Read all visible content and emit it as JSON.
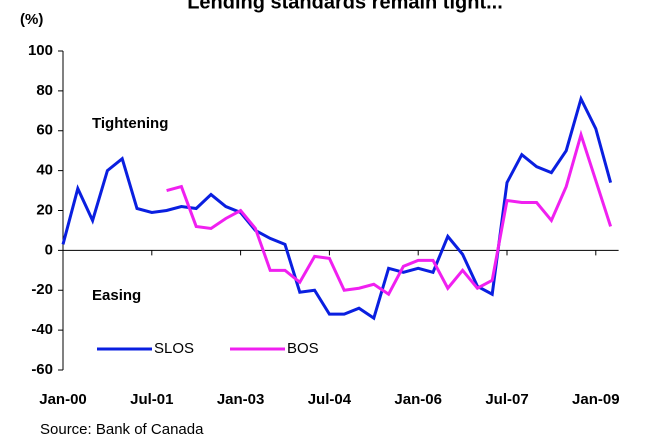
{
  "chart_data": {
    "type": "line",
    "title": "Lending standards remain tight...",
    "unit_label": "(%)",
    "annotations": [
      "Tightening",
      "Easing"
    ],
    "source": "Source: Bank of Canada",
    "categories": [
      "Jan-00",
      null,
      null,
      null,
      null,
      null,
      "Jul-01",
      null,
      null,
      null,
      null,
      null,
      "Jan-03",
      null,
      null,
      null,
      null,
      null,
      "Jul-04",
      null,
      null,
      null,
      null,
      null,
      "Jan-06",
      null,
      null,
      null,
      null,
      null,
      "Jul-07",
      null,
      null,
      null,
      null,
      null,
      "Jan-09",
      null
    ],
    "series": [
      {
        "name": "SLOS",
        "color": "#0a1fe0",
        "values": [
          3,
          31,
          15,
          40,
          46,
          21,
          19,
          20,
          22,
          21,
          28,
          22,
          19,
          10,
          6,
          3,
          -21,
          -20,
          -32,
          -32,
          -29,
          -34,
          -9,
          -11,
          -9,
          -11,
          7,
          -2,
          -18,
          -22,
          34,
          48,
          42,
          39,
          50,
          76,
          61,
          34
        ]
      },
      {
        "name": "BOS",
        "color": "#f020f0",
        "values": [
          null,
          null,
          null,
          null,
          null,
          null,
          null,
          30,
          32,
          12,
          11,
          16,
          20,
          11,
          -10,
          -10,
          -16,
          -3,
          -4,
          -20,
          -19,
          -17,
          -22,
          -8,
          -5,
          -5,
          -19,
          -10,
          -19,
          -15,
          25,
          24,
          24,
          15,
          32,
          58,
          35,
          12
        ]
      }
    ],
    "ylim": [
      -60,
      100
    ],
    "yticks": [
      -60,
      -40,
      -20,
      0,
      20,
      40,
      60,
      80,
      100
    ],
    "legend": "bottom-left"
  }
}
